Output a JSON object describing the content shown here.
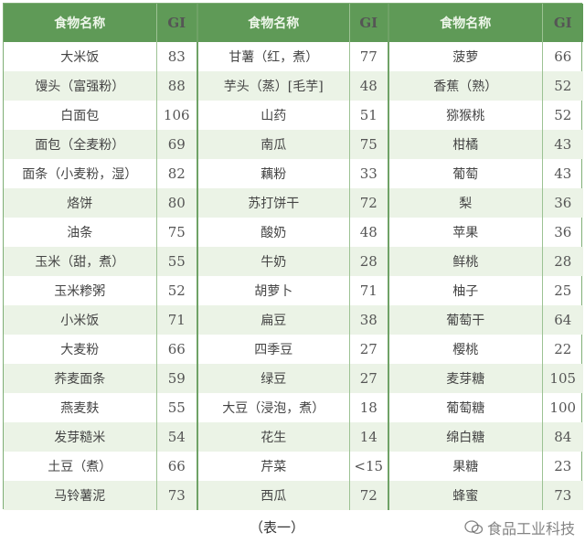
{
  "headers": {
    "name": "食物名称",
    "gi": "GI"
  },
  "columns": [
    [
      [
        "大米饭",
        "83"
      ],
      [
        "馒头（富强粉）",
        "88"
      ],
      [
        "白面包",
        "106"
      ],
      [
        "面包（全麦粉）",
        "69"
      ],
      [
        "面条（小麦粉，湿）",
        "82"
      ],
      [
        "烙饼",
        "80"
      ],
      [
        "油条",
        "75"
      ],
      [
        "玉米（甜，煮）",
        "55"
      ],
      [
        "玉米糁粥",
        "52"
      ],
      [
        "小米饭",
        "71"
      ],
      [
        "大麦粉",
        "66"
      ],
      [
        "荞麦面条",
        "59"
      ],
      [
        "燕麦麸",
        "55"
      ],
      [
        "发芽糙米",
        "54"
      ],
      [
        "土豆（煮）",
        "66"
      ],
      [
        "马铃薯泥",
        "73"
      ]
    ],
    [
      [
        "甘薯（红，煮）",
        "77"
      ],
      [
        "芋头（蒸）[毛芋]",
        "48"
      ],
      [
        "山药",
        "51"
      ],
      [
        "南瓜",
        "75"
      ],
      [
        "藕粉",
        "33"
      ],
      [
        "苏打饼干",
        "72"
      ],
      [
        "酸奶",
        "48"
      ],
      [
        "牛奶",
        "28"
      ],
      [
        "胡萝卜",
        "71"
      ],
      [
        "扁豆",
        "38"
      ],
      [
        "四季豆",
        "27"
      ],
      [
        "绿豆",
        "27"
      ],
      [
        "大豆（浸泡，煮）",
        "18"
      ],
      [
        "花生",
        "14"
      ],
      [
        "芹菜",
        "<15"
      ],
      [
        "西瓜",
        "72"
      ]
    ],
    [
      [
        "菠萝",
        "66"
      ],
      [
        "香蕉（熟）",
        "52"
      ],
      [
        "猕猴桃",
        "52"
      ],
      [
        "柑橘",
        "43"
      ],
      [
        "葡萄",
        "43"
      ],
      [
        "梨",
        "36"
      ],
      [
        "苹果",
        "36"
      ],
      [
        "鲜桃",
        "28"
      ],
      [
        "柚子",
        "25"
      ],
      [
        "葡萄干",
        "64"
      ],
      [
        "樱桃",
        "22"
      ],
      [
        "麦芽糖",
        "105"
      ],
      [
        "葡萄糖",
        "100"
      ],
      [
        "绵白糖",
        "84"
      ],
      [
        "果糖",
        "23"
      ],
      [
        "蜂蜜",
        "73"
      ]
    ]
  ],
  "caption": "（表一）",
  "watermark": "食品工业科技",
  "colors": {
    "header": "#5f9a57",
    "alt_row": "#ebf3e6",
    "border": "#7fae76"
  }
}
